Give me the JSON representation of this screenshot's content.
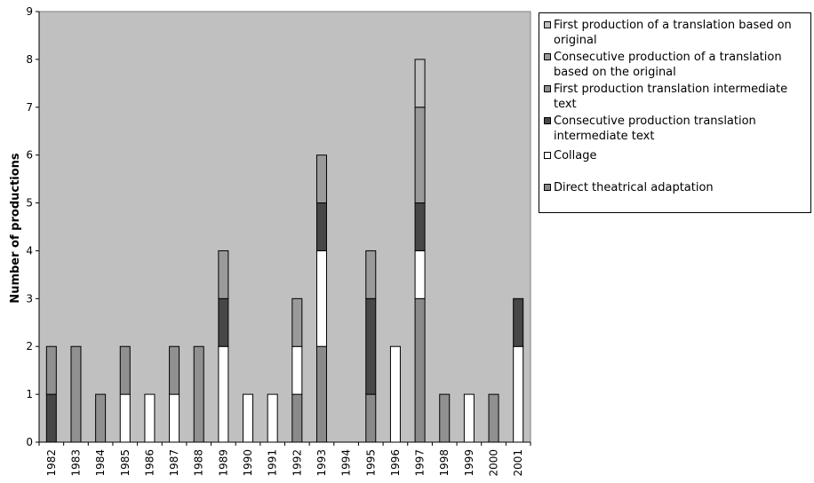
{
  "chart_data": {
    "type": "bar",
    "stacked": true,
    "ylabel": "Number of productions",
    "xlabel": "",
    "ylim": [
      0,
      9
    ],
    "yticks": [
      0,
      1,
      2,
      3,
      4,
      5,
      6,
      7,
      8,
      9
    ],
    "grid": false,
    "legend_position": "right",
    "categories": [
      "1982",
      "1983",
      "1984",
      "1985",
      "1986",
      "1987",
      "1988",
      "1989",
      "1990",
      "1991",
      "1992",
      "1993",
      "1994",
      "1995",
      "1996",
      "1997",
      "1998",
      "1999",
      "2000",
      "2001"
    ],
    "series": [
      {
        "name": "First production of a translation based on original",
        "color": "#c0c0c0",
        "values": [
          0,
          0,
          0,
          0,
          0,
          0,
          0,
          0,
          0,
          0,
          0,
          0,
          0,
          0,
          0,
          1,
          0,
          0,
          0,
          0
        ]
      },
      {
        "name": "Consecutive production of a translation based on the original",
        "color": "#9a9a9a",
        "values": [
          0,
          0,
          0,
          0,
          0,
          0,
          0,
          1,
          0,
          0,
          1,
          1,
          0,
          1,
          0,
          2,
          0,
          0,
          0,
          0
        ]
      },
      {
        "name": "First production translation intermediate text",
        "color": "#909090",
        "values": [
          1,
          2,
          1,
          1,
          0,
          1,
          2,
          0,
          0,
          0,
          0,
          0,
          0,
          0,
          0,
          0,
          1,
          0,
          1,
          0
        ]
      },
      {
        "name": "Consecutive production translation intermediate text",
        "color": "#474747",
        "values": [
          1,
          0,
          0,
          0,
          0,
          0,
          0,
          1,
          0,
          0,
          0,
          1,
          0,
          2,
          0,
          1,
          0,
          0,
          0,
          1
        ]
      },
      {
        "name": "Collage",
        "color": "#ffffff",
        "values": [
          0,
          0,
          0,
          1,
          1,
          1,
          0,
          2,
          1,
          1,
          1,
          2,
          0,
          0,
          2,
          1,
          0,
          1,
          0,
          2
        ]
      },
      {
        "name": "Direct theatrical adaptation",
        "color": "#8a8a8a",
        "values": [
          0,
          0,
          0,
          0,
          0,
          0,
          0,
          0,
          0,
          0,
          1,
          2,
          0,
          1,
          0,
          3,
          0,
          0,
          0,
          0
        ]
      }
    ],
    "stack_order": [
      5,
      4,
      3,
      2,
      1,
      0
    ]
  },
  "colors": {
    "plot_background": "#c0c0c0",
    "axis": "#000000"
  }
}
